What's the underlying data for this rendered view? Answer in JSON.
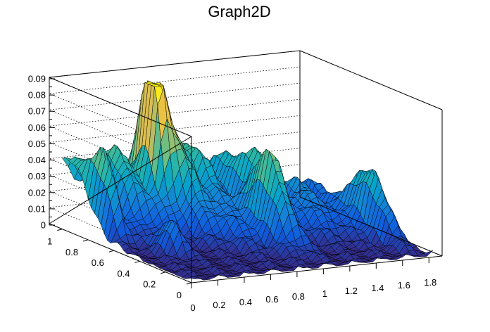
{
  "chart_data": {
    "type": "surface",
    "title": "Graph2D",
    "xlabel": "",
    "ylabel": "",
    "zlabel": "",
    "xlim": [
      0,
      1.9
    ],
    "ylim": [
      0,
      1.1
    ],
    "zlim": [
      0,
      0.09
    ],
    "x_ticks": [
      "0",
      "0.2",
      "0.4",
      "0.6",
      "0.8",
      "1",
      "1.2",
      "1.4",
      "1.6",
      "1.8"
    ],
    "y_ticks": [
      "0",
      "0.2",
      "0.4",
      "0.6",
      "0.8",
      "1"
    ],
    "z_ticks": [
      "0",
      "0.01",
      "0.02",
      "0.03",
      "0.04",
      "0.05",
      "0.06",
      "0.07",
      "0.08",
      "0.09"
    ],
    "grid": true,
    "palette": [
      "#352a87",
      "#0f5cdd",
      "#1481d6",
      "#06a4ca",
      "#2eb7a4",
      "#87bf77",
      "#d1bb59",
      "#fec832",
      "#f9fb0e"
    ],
    "surface_grid": {
      "nx": 40,
      "ny": 40
    },
    "features": [
      {
        "name": "peak",
        "x": 0.55,
        "y": 0.85,
        "z": 0.089
      },
      {
        "name": "ridge",
        "x": 1.05,
        "y": 0.45,
        "z": 0.065
      },
      {
        "name": "secondary-peak",
        "x": 1.75,
        "y": 0.42,
        "z": 0.045
      },
      {
        "name": "valley",
        "x": 0.55,
        "y": 0.35,
        "z": 0.0
      }
    ]
  }
}
